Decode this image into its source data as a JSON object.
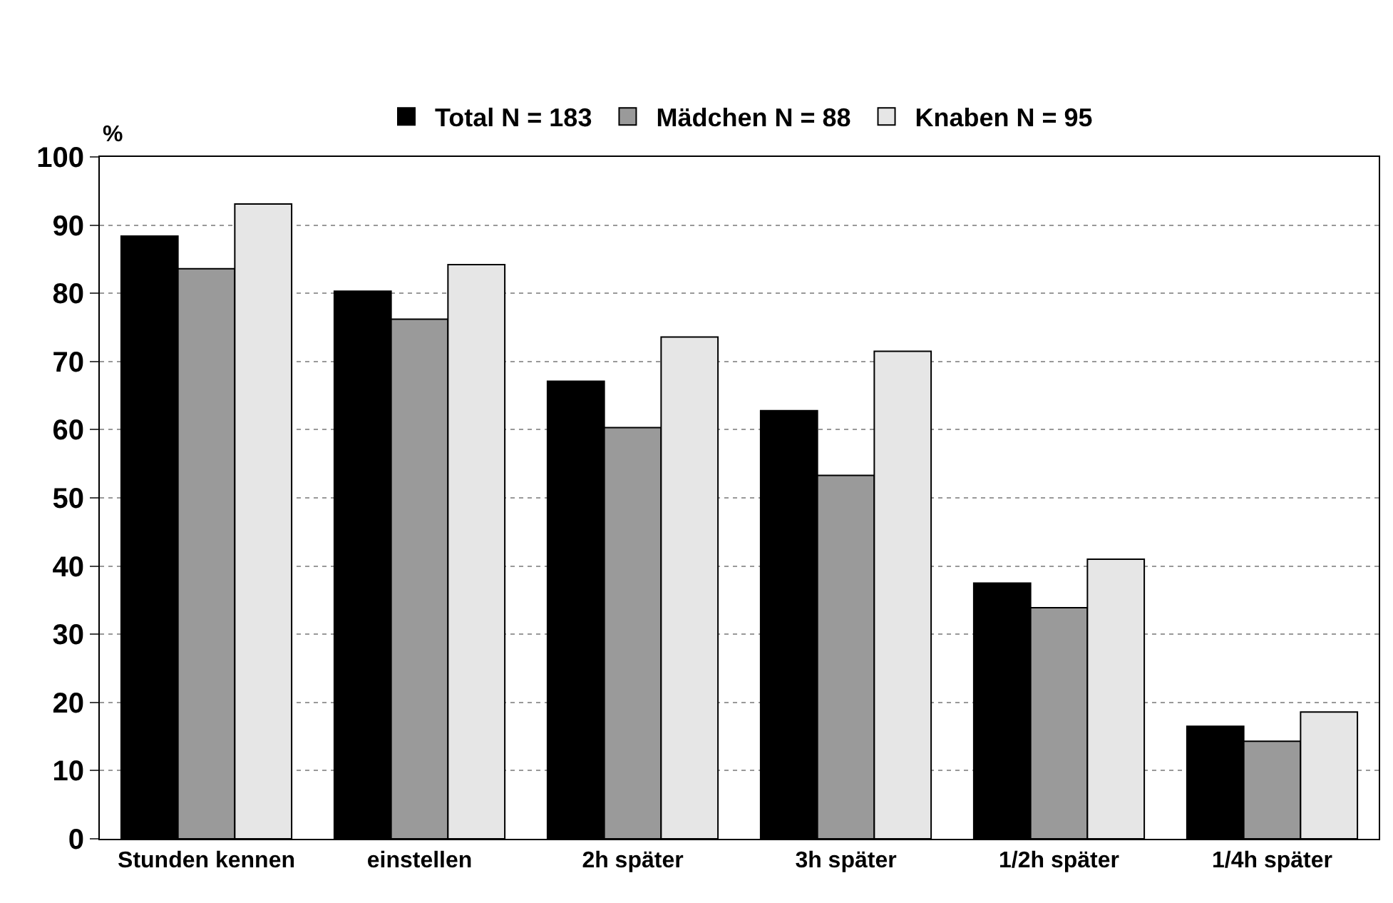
{
  "chart_data": {
    "type": "bar",
    "ylabel": "%",
    "categories": [
      "Stunden kennen",
      "einstellen",
      "2h später",
      "3h später",
      "1/2h später",
      "1/4h später"
    ],
    "series": [
      {
        "name": "Total N = 183",
        "color": "#000000",
        "values": [
          88.4,
          80.3,
          67.1,
          62.8,
          37.5,
          16.5
        ]
      },
      {
        "name": "Mädchen N = 88",
        "color": "#9a9a9a",
        "values": [
          83.6,
          76.2,
          60.3,
          53.3,
          33.9,
          14.3
        ]
      },
      {
        "name": "Knaben N = 95",
        "color": "#e6e6e6",
        "values": [
          93.1,
          84.2,
          73.6,
          71.5,
          41.0,
          18.6
        ]
      }
    ],
    "ylim": [
      0,
      100
    ],
    "yticks": [
      0,
      10,
      20,
      30,
      40,
      50,
      60,
      70,
      80,
      90,
      100
    ],
    "grid": "y",
    "legend": "top"
  }
}
